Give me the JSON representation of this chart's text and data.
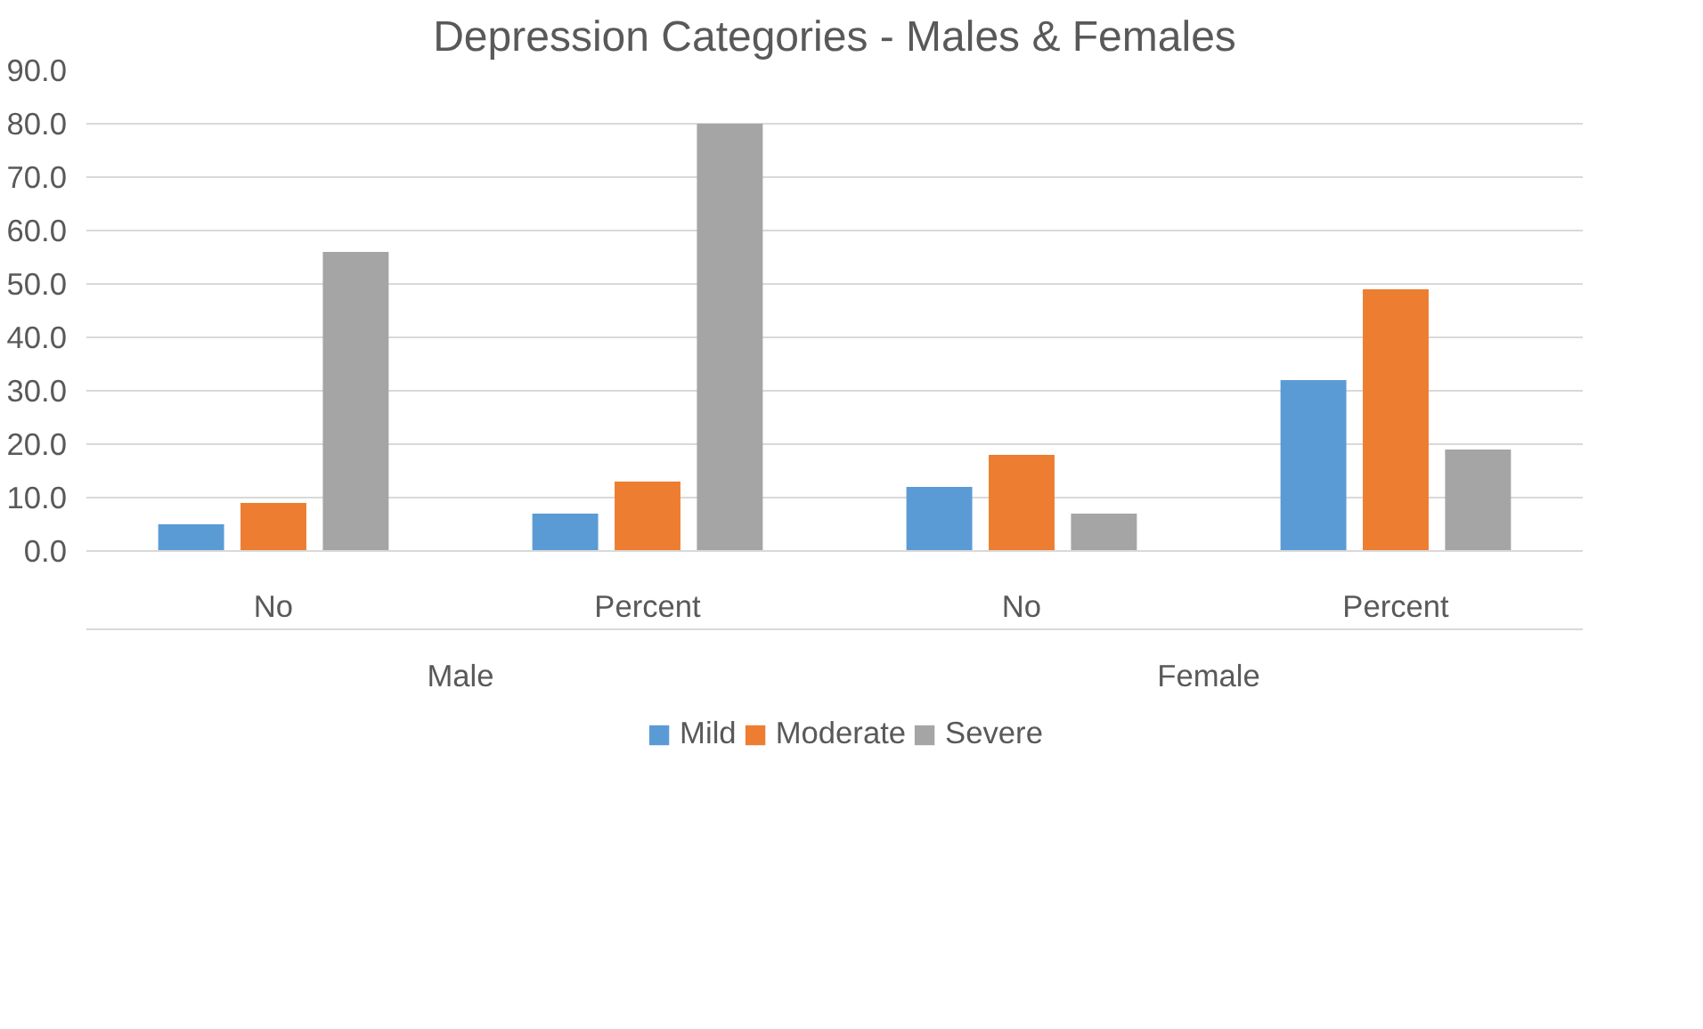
{
  "chart_data": {
    "type": "bar",
    "title": "Depression Categories - Males & Females",
    "categories": [
      "No",
      "Percent",
      "No",
      "Percent"
    ],
    "annotations": [
      "Male",
      "Female"
    ],
    "series": [
      {
        "name": "Mild",
        "color": "#5b9bd5",
        "values": [
          5,
          7,
          12,
          32
        ]
      },
      {
        "name": "Moderate",
        "color": "#ed7d31",
        "values": [
          9,
          13,
          18,
          49
        ]
      },
      {
        "name": "Severe",
        "color": "#a5a5a5",
        "values": [
          56,
          80,
          7,
          19
        ]
      }
    ],
    "ylim": [
      0,
      90
    ],
    "yticks": [
      {
        "value": 0,
        "label": "0.0"
      },
      {
        "value": 10,
        "label": "10.0"
      },
      {
        "value": 20,
        "label": "20.0"
      },
      {
        "value": 30,
        "label": "30.0"
      },
      {
        "value": 40,
        "label": "40.0"
      },
      {
        "value": 50,
        "label": "50.0"
      },
      {
        "value": 60,
        "label": "60.0"
      },
      {
        "value": 70,
        "label": "70.0"
      },
      {
        "value": 80,
        "label": "80.0"
      },
      {
        "value": 90,
        "label": "90.0"
      }
    ],
    "grid": "y",
    "legend": "bottom"
  }
}
